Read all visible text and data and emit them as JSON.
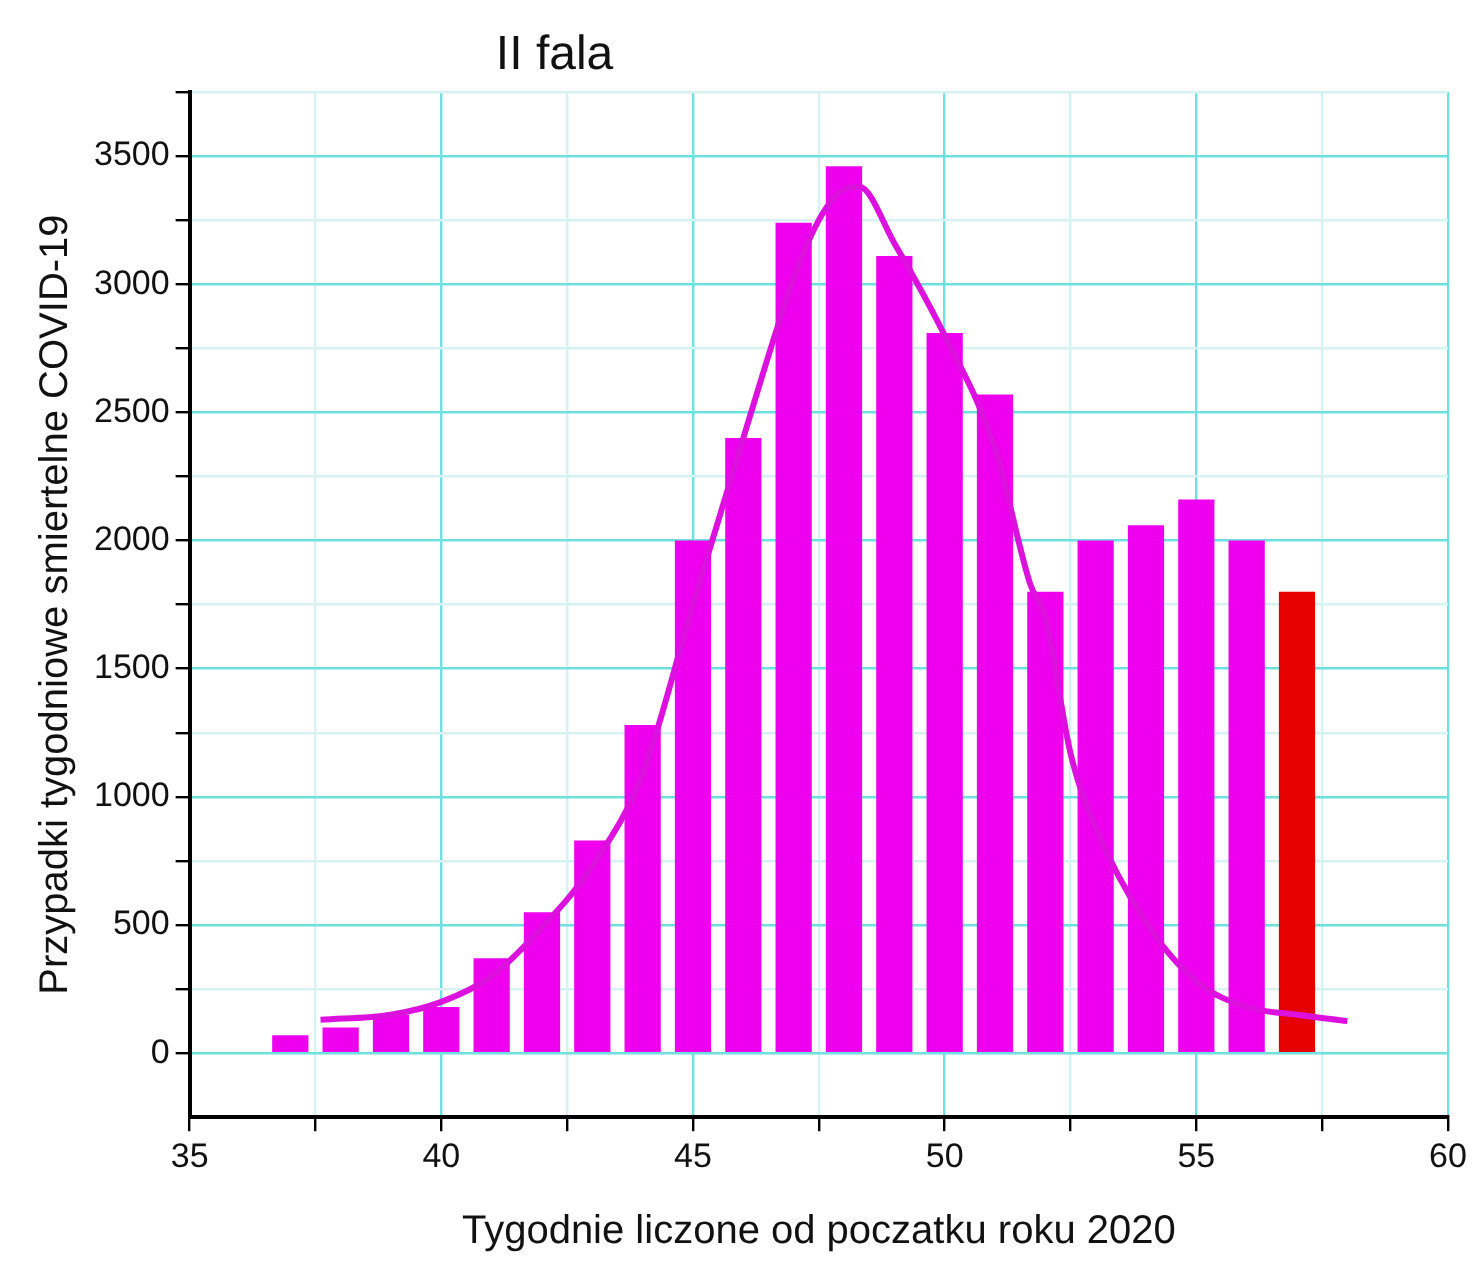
{
  "chart_data": {
    "type": "bar",
    "title": "II fala",
    "xlabel": "Tygodnie liczone od poczatku roku 2020",
    "ylabel": "Przypadki tygodniowe smiertelne COVID-19",
    "x": [
      37,
      38,
      39,
      40,
      41,
      42,
      43,
      44,
      45,
      46,
      47,
      48,
      49,
      50,
      51,
      52,
      53,
      54,
      55,
      56,
      57
    ],
    "series": [
      {
        "values": [
          70,
          100,
          150,
          180,
          370,
          550,
          830,
          1280,
          2000,
          2400,
          3240,
          3460,
          3110,
          2810,
          2570,
          1800,
          2000,
          2060,
          2160,
          2000,
          1800
        ],
        "colors": [
          "#ee00ee",
          "#ee00ee",
          "#ee00ee",
          "#ee00ee",
          "#ee00ee",
          "#ee00ee",
          "#ee00ee",
          "#ee00ee",
          "#ee00ee",
          "#ee00ee",
          "#ee00ee",
          "#ee00ee",
          "#ee00ee",
          "#ee00ee",
          "#ee00ee",
          "#ee00ee",
          "#ee00ee",
          "#ee00ee",
          "#ee00ee",
          "#ee00ee",
          "#e60000"
        ]
      },
      {
        "type": "line",
        "color": "#dd11dd",
        "x": [
          37.6,
          39,
          40,
          41,
          42,
          43,
          44,
          45,
          46,
          47,
          47.5,
          48,
          48.3,
          49,
          50,
          51,
          51.7,
          52,
          52.5,
          53,
          54,
          55,
          56,
          57,
          58
        ],
        "values": [
          130,
          150,
          200,
          300,
          490,
          730,
          1090,
          1750,
          2400,
          3020,
          3250,
          3370,
          3380,
          3160,
          2800,
          2360,
          1830,
          1700,
          1170,
          880,
          510,
          280,
          180,
          150,
          125
        ]
      }
    ],
    "xlim": [
      35,
      60
    ],
    "xticks": [
      35,
      {
        "value": 37.5,
        "label": null
      },
      40,
      {
        "value": 42.5,
        "label": null
      },
      45,
      {
        "value": 47.5,
        "label": null
      },
      50,
      {
        "value": 52.5,
        "label": null
      },
      55,
      {
        "value": 57.5,
        "label": null
      },
      60
    ],
    "ylim": [
      -250,
      3750
    ],
    "yticks": [
      0,
      {
        "value": 250,
        "label": null
      },
      500,
      {
        "value": 750,
        "label": null
      },
      1000,
      {
        "value": 1250,
        "label": null
      },
      1500,
      {
        "value": 1750,
        "label": null
      },
      2000,
      {
        "value": 2250,
        "label": null
      },
      2500,
      {
        "value": 2750,
        "label": null
      },
      3000,
      {
        "value": 3250,
        "label": null
      },
      3500,
      {
        "value": 3750,
        "label": null
      }
    ],
    "grid": true
  }
}
